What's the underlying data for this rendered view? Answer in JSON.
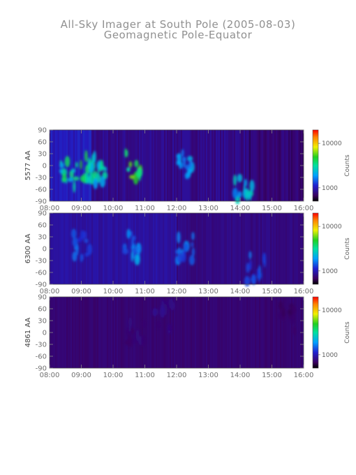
{
  "header": {
    "title": "All-Sky Imager at South Pole (2005-08-03)",
    "subtitle": "Geomagnetic Pole-Equator"
  },
  "chart_data": [
    {
      "type": "heatmap",
      "ylabel": "5577 AA",
      "x_ticks": [
        "08:00",
        "09:00",
        "10:00",
        "11:00",
        "12:00",
        "13:00",
        "14:00",
        "15:00",
        "16:00"
      ],
      "y_ticks": [
        90,
        60,
        30,
        0,
        -30,
        -60,
        -90
      ],
      "xlim": [
        "08:00",
        "16:00"
      ],
      "ylim": [
        -90,
        90
      ],
      "colorbar": {
        "label": "Counts",
        "scale": "log",
        "ticks": [
          10000,
          1000
        ],
        "tick_labels": [
          "10000",
          "1000"
        ]
      },
      "features": [
        {
          "x": 8.6,
          "y": -20,
          "intensity": 0.55
        },
        {
          "x": 9.2,
          "y": -5,
          "intensity": 0.6
        },
        {
          "x": 9.5,
          "y": -25,
          "intensity": 0.5
        },
        {
          "x": 10.65,
          "y": 0,
          "intensity": 0.65
        },
        {
          "x": 12.3,
          "y": 5,
          "intensity": 0.4
        },
        {
          "x": 14.1,
          "y": -65,
          "intensity": 0.45
        }
      ]
    },
    {
      "type": "heatmap",
      "ylabel": "6300 AA",
      "x_ticks": [
        "08:00",
        "09:00",
        "10:00",
        "11:00",
        "12:00",
        "13:00",
        "14:00",
        "15:00",
        "16:00"
      ],
      "y_ticks": [
        90,
        60,
        30,
        0,
        -30,
        -60,
        -90
      ],
      "xlim": [
        "08:00",
        "16:00"
      ],
      "ylim": [
        -90,
        90
      ],
      "colorbar": {
        "label": "Counts",
        "scale": "log",
        "ticks": [
          10000,
          1000
        ],
        "tick_labels": [
          "10000",
          "1000"
        ]
      },
      "features": [
        {
          "x": 9.0,
          "y": 10,
          "intensity": 0.3
        },
        {
          "x": 10.65,
          "y": 5,
          "intensity": 0.38
        },
        {
          "x": 12.3,
          "y": 0,
          "intensity": 0.35
        },
        {
          "x": 14.5,
          "y": -50,
          "intensity": 0.3
        }
      ]
    },
    {
      "type": "heatmap",
      "ylabel": "4861 AA",
      "x_ticks": [
        "08:00",
        "09:00",
        "10:00",
        "11:00",
        "12:00",
        "13:00",
        "14:00",
        "15:00",
        "16:00"
      ],
      "y_ticks": [
        90,
        60,
        30,
        0,
        -30,
        -60,
        -90
      ],
      "xlim": [
        "08:00",
        "16:00"
      ],
      "ylim": [
        -90,
        90
      ],
      "colorbar": {
        "label": "Counts",
        "scale": "log",
        "ticks": [
          10000,
          1000
        ],
        "tick_labels": [
          "10000",
          "1000"
        ]
      },
      "features": [
        {
          "x": 10.7,
          "y": 0,
          "intensity": 0.12
        },
        {
          "x": 11.6,
          "y": 40,
          "intensity": 0.14
        },
        {
          "x": 15.5,
          "y": 35,
          "intensity": 0.1
        }
      ]
    }
  ]
}
